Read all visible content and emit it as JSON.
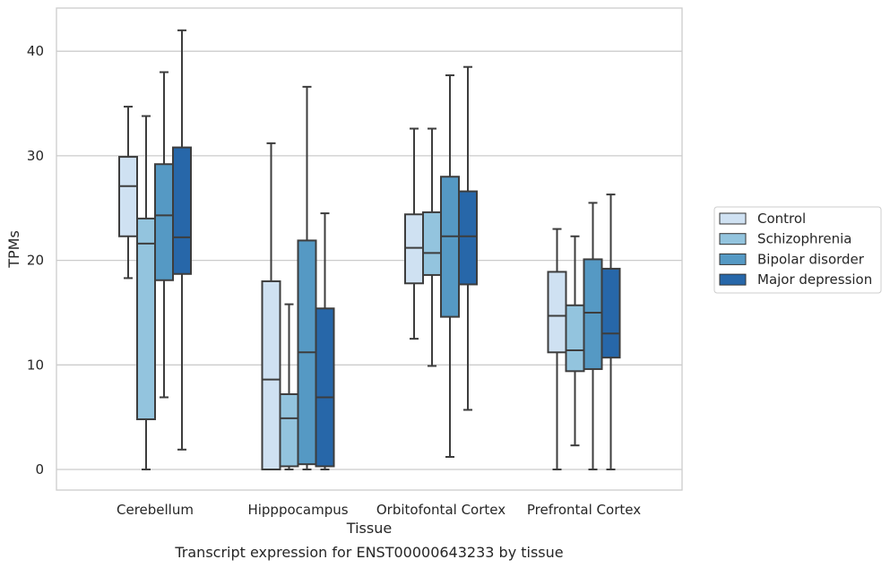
{
  "chart_data": {
    "type": "box",
    "xlabel": "Tissue",
    "ylabel": "TPMs",
    "caption": "Transcript expression for ENST00000643233 by tissue",
    "ylim": [
      -2,
      44
    ],
    "yticks": [
      0,
      10,
      20,
      30,
      40
    ],
    "grid": "horizontal",
    "legend_position": "right",
    "categories": [
      "Cerebellum",
      "Hipppocampus",
      "Orbitofontal Cortex",
      "Prefrontal Cortex"
    ],
    "series": [
      {
        "name": "Control",
        "color": "#cfe1f2",
        "boxes": [
          {
            "whisker_low": 18.3,
            "q1": 22.3,
            "median": 27.1,
            "q3": 29.9,
            "whisker_high": 34.7
          },
          {
            "whisker_low": 0.0,
            "q1": 0.0,
            "median": 8.6,
            "q3": 18.0,
            "whisker_high": 31.2
          },
          {
            "whisker_low": 12.5,
            "q1": 17.8,
            "median": 21.2,
            "q3": 24.4,
            "whisker_high": 32.6
          },
          {
            "whisker_low": 0.0,
            "q1": 11.2,
            "median": 14.7,
            "q3": 18.9,
            "whisker_high": 23.0
          }
        ]
      },
      {
        "name": "Schizophrenia",
        "color": "#93c4de",
        "boxes": [
          {
            "whisker_low": 0.0,
            "q1": 4.8,
            "median": 21.6,
            "q3": 24.0,
            "whisker_high": 33.8
          },
          {
            "whisker_low": 0.0,
            "q1": 0.3,
            "median": 4.9,
            "q3": 7.2,
            "whisker_high": 15.8
          },
          {
            "whisker_low": 9.9,
            "q1": 18.6,
            "median": 20.7,
            "q3": 24.6,
            "whisker_high": 32.6
          },
          {
            "whisker_low": 2.3,
            "q1": 9.4,
            "median": 11.4,
            "q3": 15.7,
            "whisker_high": 22.3
          }
        ]
      },
      {
        "name": "Bipolar disorder",
        "color": "#5599c4",
        "boxes": [
          {
            "whisker_low": 6.9,
            "q1": 18.1,
            "median": 24.3,
            "q3": 29.2,
            "whisker_high": 38.0
          },
          {
            "whisker_low": 0.0,
            "q1": 0.5,
            "median": 11.2,
            "q3": 21.9,
            "whisker_high": 36.6
          },
          {
            "whisker_low": 1.2,
            "q1": 14.6,
            "median": 22.3,
            "q3": 28.0,
            "whisker_high": 37.7
          },
          {
            "whisker_low": 0.0,
            "q1": 9.6,
            "median": 15.0,
            "q3": 20.1,
            "whisker_high": 25.5
          }
        ]
      },
      {
        "name": "Major depression",
        "color": "#2767a9",
        "boxes": [
          {
            "whisker_low": 1.9,
            "q1": 18.7,
            "median": 22.2,
            "q3": 30.8,
            "whisker_high": 42.0
          },
          {
            "whisker_low": 0.0,
            "q1": 0.3,
            "median": 6.9,
            "q3": 15.4,
            "whisker_high": 24.5
          },
          {
            "whisker_low": 5.7,
            "q1": 17.7,
            "median": 22.3,
            "q3": 26.6,
            "whisker_high": 38.5
          },
          {
            "whisker_low": 0.0,
            "q1": 10.7,
            "median": 13.0,
            "q3": 19.2,
            "whisker_high": 26.3
          }
        ]
      }
    ]
  }
}
